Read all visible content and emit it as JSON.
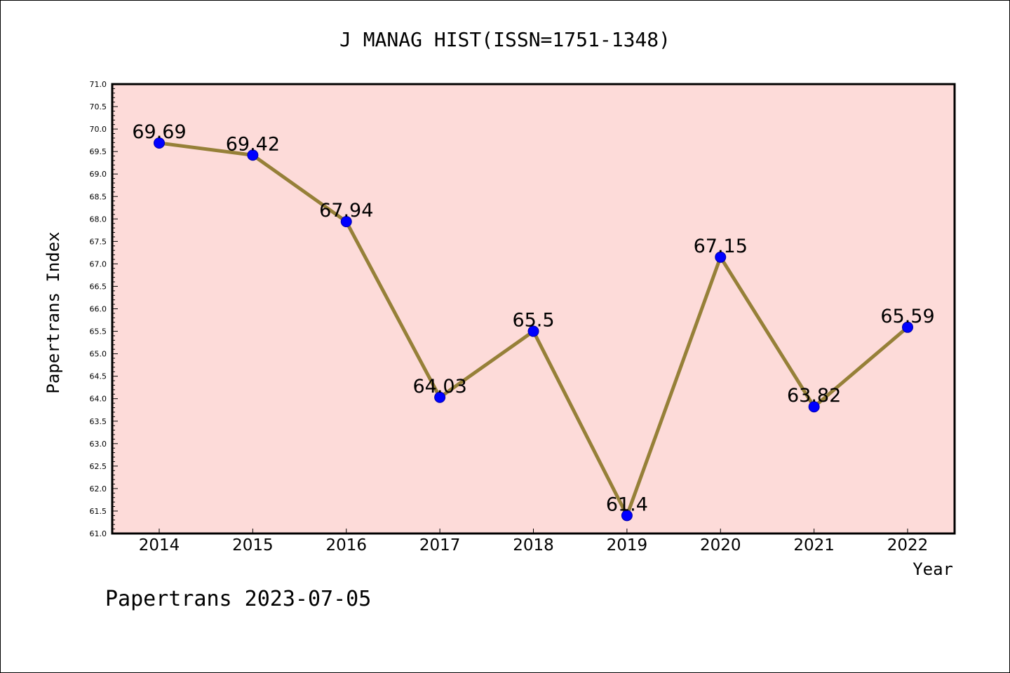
{
  "chart_data": {
    "type": "line",
    "title": "J MANAG HIST(ISSN=1751-1348)",
    "xlabel": "Year",
    "ylabel": "Papertrans Index",
    "footer": "Papertrans 2023-07-05",
    "categories": [
      "2014",
      "2015",
      "2016",
      "2017",
      "2018",
      "2019",
      "2020",
      "2021",
      "2022"
    ],
    "values": [
      69.69,
      69.42,
      67.94,
      64.03,
      65.5,
      61.4,
      67.15,
      63.82,
      65.59
    ],
    "value_labels": [
      "69.69",
      "69.42",
      "67.94",
      "64.03",
      "65.5",
      "61.4",
      "67.15",
      "63.82",
      "65.59"
    ],
    "ylim": [
      61.0,
      71.0
    ],
    "yticks": [
      "61.0",
      "61.5",
      "62.0",
      "62.5",
      "63.0",
      "63.5",
      "64.0",
      "64.5",
      "65.0",
      "65.5",
      "66.0",
      "66.5",
      "67.0",
      "67.5",
      "68.0",
      "68.5",
      "69.0",
      "69.5",
      "70.0",
      "70.5",
      "71.0"
    ],
    "grid": false,
    "colors": {
      "plot_background": "#fddbd9",
      "line": "#968038",
      "marker": "#0000ff"
    }
  }
}
